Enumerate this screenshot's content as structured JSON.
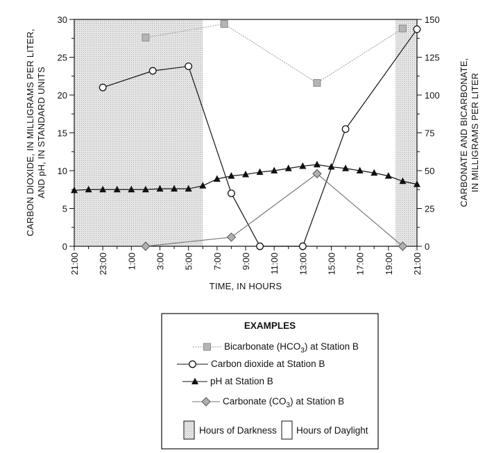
{
  "chart_data": {
    "type": "line",
    "title": "",
    "xlabel": "TIME, IN HOURS",
    "ylabel_left": [
      "CARBON DIOXIDE, IN MILLIGRAMS PER LITER,",
      "AND pH, IN STANDARD UNITS"
    ],
    "ylabel_right": [
      "CARBONATE AND BICARBONATE,",
      "IN MILLIGRAMS PER LITER"
    ],
    "x_range_hours": [
      21,
      45
    ],
    "x_ticks": [
      "21:00",
      "23:00",
      "1:00",
      "3:00",
      "5:00",
      "7:00",
      "9:00",
      "11:00",
      "13:00",
      "15:00",
      "17:00",
      "19:00",
      "21:00"
    ],
    "ylim_left": [
      0,
      30
    ],
    "y_ticks_left": [
      "0",
      "5",
      "10",
      "15",
      "20",
      "25",
      "30"
    ],
    "ylim_right": [
      0,
      150
    ],
    "y_ticks_right": [
      "0",
      "25",
      "50",
      "75",
      "100",
      "125",
      "150"
    ],
    "darkness_periods_hours": [
      [
        21,
        30
      ],
      [
        43.5,
        45
      ]
    ],
    "series": [
      {
        "name": "Bicarbonate (HCO3) at Station B",
        "axis": "right",
        "color": "#9a9a9a",
        "marker": "square",
        "points": [
          [
            26,
            138
          ],
          [
            31.5,
            147
          ],
          [
            38,
            108
          ],
          [
            44,
            144
          ]
        ]
      },
      {
        "name": "Carbon dioxide at Station B",
        "axis": "left",
        "color": "#111111",
        "marker": "circle",
        "points": [
          [
            23,
            21
          ],
          [
            26.5,
            23.2
          ],
          [
            29,
            23.8
          ],
          [
            32,
            7
          ],
          [
            34,
            0
          ],
          [
            37,
            0
          ],
          [
            40,
            15.5
          ],
          [
            45,
            28.7
          ]
        ]
      },
      {
        "name": "pH at Station B",
        "axis": "left",
        "color": "#111111",
        "marker": "triangle",
        "points": [
          [
            21,
            7.4
          ],
          [
            22,
            7.5
          ],
          [
            23,
            7.5
          ],
          [
            24,
            7.5
          ],
          [
            25,
            7.5
          ],
          [
            26,
            7.5
          ],
          [
            27,
            7.6
          ],
          [
            28,
            7.6
          ],
          [
            29,
            7.6
          ],
          [
            30,
            8.0
          ],
          [
            31,
            8.9
          ],
          [
            32,
            9.3
          ],
          [
            33,
            9.5
          ],
          [
            34,
            9.8
          ],
          [
            35,
            10.0
          ],
          [
            36,
            10.3
          ],
          [
            37,
            10.6
          ],
          [
            38,
            10.8
          ],
          [
            39,
            10.5
          ],
          [
            40,
            10.3
          ],
          [
            41,
            10.0
          ],
          [
            42,
            9.7
          ],
          [
            43,
            9.3
          ],
          [
            44,
            8.6
          ],
          [
            45,
            8.2
          ]
        ]
      },
      {
        "name": "Carbonate (CO3) at Station B",
        "axis": "right",
        "color": "#777777",
        "marker": "diamond",
        "points": [
          [
            26,
            0
          ],
          [
            32,
            6
          ],
          [
            38,
            48
          ],
          [
            44,
            0
          ]
        ]
      }
    ],
    "legend": {
      "title": "EXAMPLES",
      "placement": "bottom-center",
      "entries": [
        {
          "prefix": "Bicarbonate (HCO",
          "sub": "3",
          "suffix": ") at Station B"
        },
        {
          "prefix": "Carbon dioxide at Station B",
          "sub": "",
          "suffix": ""
        },
        {
          "prefix": "pH at Station B",
          "sub": "",
          "suffix": ""
        },
        {
          "prefix": "Carbonate (CO",
          "sub": "3",
          "suffix": ") at Station B"
        }
      ],
      "darkness_label": "Hours of Darkness",
      "daylight_label": "Hours of Daylight"
    }
  }
}
